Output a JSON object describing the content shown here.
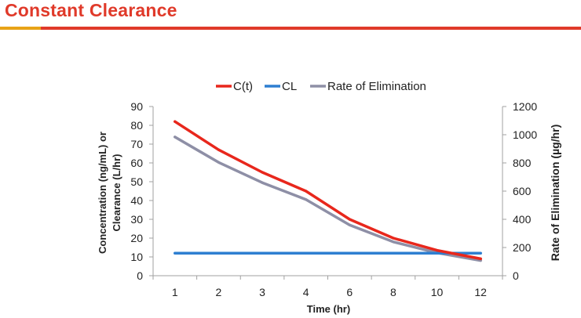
{
  "slide": {
    "title": "Constant Clearance"
  },
  "colors": {
    "title": "#e03a2a",
    "title_bar_accent": "#e8a317",
    "title_bar": "#e03a2a",
    "series": [
      "#e8271c",
      "#2e7fd1",
      "#8e8fa6"
    ],
    "axis": "#a0a0a0",
    "text": "#222222"
  },
  "chart_data": {
    "type": "line",
    "title": "",
    "x": [
      "1",
      "2",
      "3",
      "4",
      "6",
      "8",
      "10",
      "12"
    ],
    "xlabel": "Time (hr)",
    "ylabel_left": "Concentration (ng/mL) or Clearance (L/hr)",
    "ylabel_right": "Rate of Elimination (µg/hr)",
    "ylim_left": [
      0,
      90
    ],
    "yticks_left": [
      0,
      10,
      20,
      30,
      40,
      50,
      60,
      70,
      80,
      90
    ],
    "ylim_right": [
      0,
      1200
    ],
    "yticks_right": [
      0,
      200,
      400,
      600,
      800,
      1000,
      1200
    ],
    "grid": false,
    "legend_position": "top",
    "series": [
      {
        "name": "C(t)",
        "axis": "left",
        "values": [
          82,
          67,
          55,
          45,
          30,
          20,
          13.5,
          9
        ]
      },
      {
        "name": "CL",
        "axis": "left",
        "values": [
          12,
          12,
          12,
          12,
          12,
          12,
          12,
          12
        ]
      },
      {
        "name": "Rate of Elimination",
        "axis": "right",
        "values": [
          984,
          804,
          660,
          540,
          360,
          240,
          162,
          108
        ]
      }
    ]
  }
}
